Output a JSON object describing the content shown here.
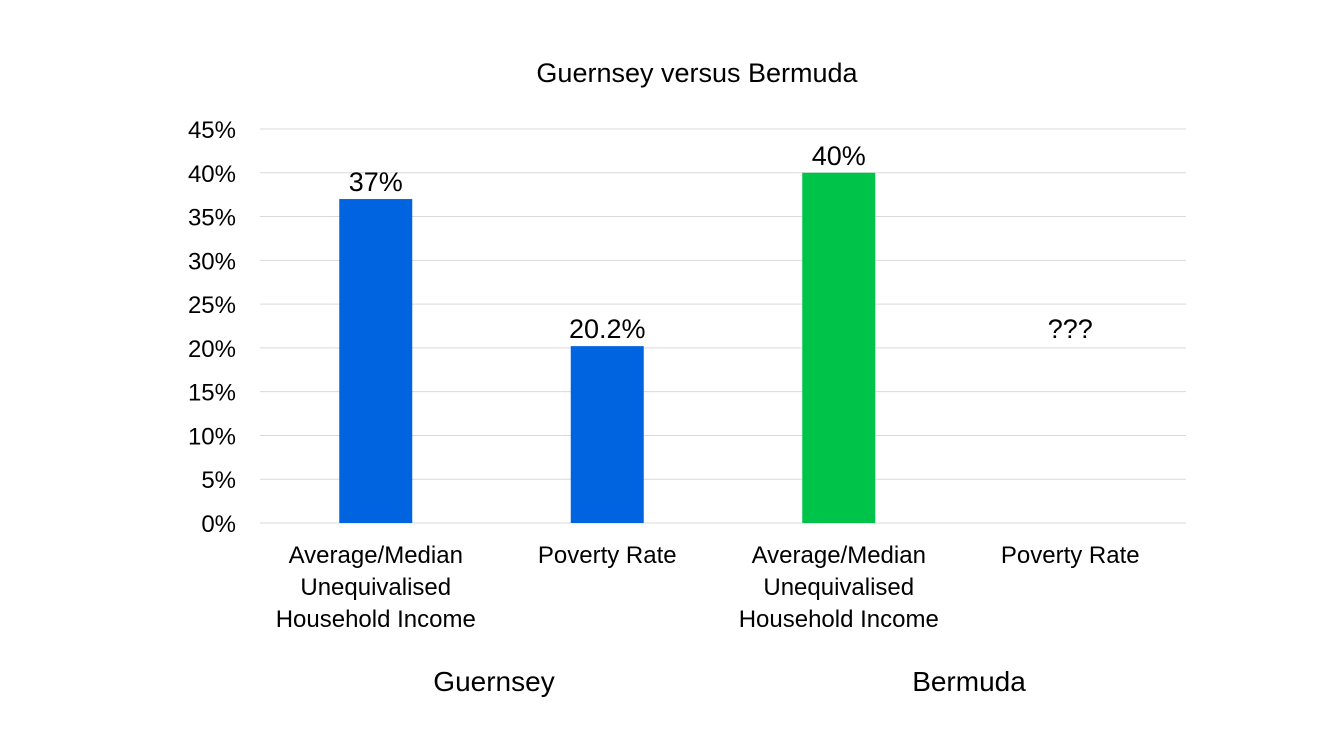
{
  "chart_data": {
    "type": "bar",
    "title": "Guernsey versus Bermuda",
    "ylim": [
      0,
      45
    ],
    "yticks": [
      "0%",
      "5%",
      "10%",
      "15%",
      "20%",
      "25%",
      "30%",
      "35%",
      "40%",
      "45%"
    ],
    "grid": true,
    "legend": "none",
    "groups": [
      "Guernsey",
      "Bermuda"
    ],
    "categories": [
      [
        "Average/Median",
        "Unequivalised",
        "Household Income"
      ],
      [
        "Poverty Rate"
      ],
      [
        "Average/Median",
        "Unequivalised",
        "Household Income"
      ],
      [
        "Poverty Rate"
      ]
    ],
    "values": [
      37,
      20.2,
      40,
      null
    ],
    "data_labels": [
      "37%",
      "20.2%",
      "40%",
      "???"
    ],
    "bar_colors": [
      "#0063E0",
      "#0063E0",
      "#00C44A",
      null
    ]
  }
}
